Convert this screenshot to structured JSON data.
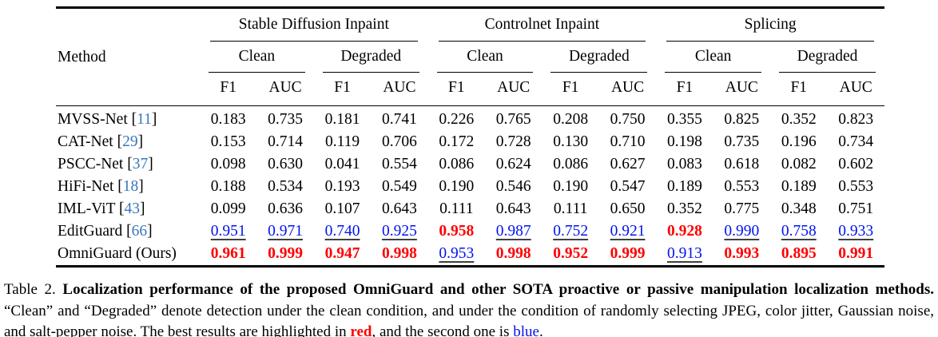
{
  "colors": {
    "best_highlight": "#fe0000",
    "second_highlight": "#0013ee",
    "citation_link": "#3778b9",
    "rule": "#000000"
  },
  "table": {
    "corner_label": "Method",
    "groups": [
      {
        "label": "Stable Diffusion Inpaint"
      },
      {
        "label": "Controlnet Inpaint"
      },
      {
        "label": "Splicing"
      }
    ],
    "conditions": [
      "Clean",
      "Degraded",
      "Clean",
      "Degraded",
      "Clean",
      "Degraded"
    ],
    "metrics": [
      "F1",
      "AUC",
      "F1",
      "AUC",
      "F1",
      "AUC",
      "F1",
      "AUC",
      "F1",
      "AUC",
      "F1",
      "AUC"
    ],
    "rows": [
      {
        "method": {
          "prefix": "MVSS-Net [",
          "cite": "11",
          "suffix": "]"
        },
        "cells": [
          {
            "t": "0.183",
            "s": "normal"
          },
          {
            "t": "0.735",
            "s": "normal"
          },
          {
            "t": "0.181",
            "s": "normal"
          },
          {
            "t": "0.741",
            "s": "normal"
          },
          {
            "t": "0.226",
            "s": "normal"
          },
          {
            "t": "0.765",
            "s": "normal"
          },
          {
            "t": "0.208",
            "s": "normal"
          },
          {
            "t": "0.750",
            "s": "normal"
          },
          {
            "t": "0.355",
            "s": "normal"
          },
          {
            "t": "0.825",
            "s": "normal"
          },
          {
            "t": "0.352",
            "s": "normal"
          },
          {
            "t": "0.823",
            "s": "normal"
          }
        ]
      },
      {
        "method": {
          "prefix": "CAT-Net [",
          "cite": "29",
          "suffix": "]"
        },
        "cells": [
          {
            "t": "0.153",
            "s": "normal"
          },
          {
            "t": "0.714",
            "s": "normal"
          },
          {
            "t": "0.119",
            "s": "normal"
          },
          {
            "t": "0.706",
            "s": "normal"
          },
          {
            "t": "0.172",
            "s": "normal"
          },
          {
            "t": "0.728",
            "s": "normal"
          },
          {
            "t": "0.130",
            "s": "normal"
          },
          {
            "t": "0.710",
            "s": "normal"
          },
          {
            "t": "0.198",
            "s": "normal"
          },
          {
            "t": "0.735",
            "s": "normal"
          },
          {
            "t": "0.196",
            "s": "normal"
          },
          {
            "t": "0.734",
            "s": "normal"
          }
        ]
      },
      {
        "method": {
          "prefix": "PSCC-Net [",
          "cite": "37",
          "suffix": "]"
        },
        "cells": [
          {
            "t": "0.098",
            "s": "normal"
          },
          {
            "t": "0.630",
            "s": "normal"
          },
          {
            "t": "0.041",
            "s": "normal"
          },
          {
            "t": "0.554",
            "s": "normal"
          },
          {
            "t": "0.086",
            "s": "normal"
          },
          {
            "t": "0.624",
            "s": "normal"
          },
          {
            "t": "0.086",
            "s": "normal"
          },
          {
            "t": "0.627",
            "s": "normal"
          },
          {
            "t": "0.083",
            "s": "normal"
          },
          {
            "t": "0.618",
            "s": "normal"
          },
          {
            "t": "0.082",
            "s": "normal"
          },
          {
            "t": "0.602",
            "s": "normal"
          }
        ]
      },
      {
        "method": {
          "prefix": "HiFi-Net [",
          "cite": "18",
          "suffix": "]"
        },
        "cells": [
          {
            "t": "0.188",
            "s": "normal"
          },
          {
            "t": "0.534",
            "s": "normal"
          },
          {
            "t": "0.193",
            "s": "normal"
          },
          {
            "t": "0.549",
            "s": "normal"
          },
          {
            "t": "0.190",
            "s": "normal"
          },
          {
            "t": "0.546",
            "s": "normal"
          },
          {
            "t": "0.190",
            "s": "normal"
          },
          {
            "t": "0.547",
            "s": "normal"
          },
          {
            "t": "0.189",
            "s": "normal"
          },
          {
            "t": "0.553",
            "s": "normal"
          },
          {
            "t": "0.189",
            "s": "normal"
          },
          {
            "t": "0.553",
            "s": "normal"
          }
        ]
      },
      {
        "method": {
          "prefix": "IML-ViT [",
          "cite": "43",
          "suffix": "]"
        },
        "cells": [
          {
            "t": "0.099",
            "s": "normal"
          },
          {
            "t": "0.636",
            "s": "normal"
          },
          {
            "t": "0.107",
            "s": "normal"
          },
          {
            "t": "0.643",
            "s": "normal"
          },
          {
            "t": "0.111",
            "s": "normal"
          },
          {
            "t": "0.643",
            "s": "normal"
          },
          {
            "t": "0.111",
            "s": "normal"
          },
          {
            "t": "0.650",
            "s": "normal"
          },
          {
            "t": "0.352",
            "s": "normal"
          },
          {
            "t": "0.775",
            "s": "normal"
          },
          {
            "t": "0.348",
            "s": "normal"
          },
          {
            "t": "0.751",
            "s": "normal"
          }
        ]
      },
      {
        "method": {
          "prefix": "EditGuard [",
          "cite": "66",
          "suffix": "]"
        },
        "cells": [
          {
            "t": "0.951",
            "s": "second"
          },
          {
            "t": "0.971",
            "s": "second"
          },
          {
            "t": "0.740",
            "s": "second"
          },
          {
            "t": "0.925",
            "s": "second"
          },
          {
            "t": "0.958",
            "s": "best"
          },
          {
            "t": "0.987",
            "s": "second"
          },
          {
            "t": "0.752",
            "s": "second"
          },
          {
            "t": "0.921",
            "s": "second"
          },
          {
            "t": "0.928",
            "s": "best"
          },
          {
            "t": "0.990",
            "s": "second"
          },
          {
            "t": "0.758",
            "s": "second"
          },
          {
            "t": "0.933",
            "s": "second"
          }
        ]
      },
      {
        "method": {
          "prefix": "OmniGuard (Ours)",
          "cite": "",
          "suffix": ""
        },
        "cells": [
          {
            "t": "0.961",
            "s": "best"
          },
          {
            "t": "0.999",
            "s": "best"
          },
          {
            "t": "0.947",
            "s": "best"
          },
          {
            "t": "0.998",
            "s": "best"
          },
          {
            "t": "0.953",
            "s": "second"
          },
          {
            "t": "0.998",
            "s": "best"
          },
          {
            "t": "0.952",
            "s": "best"
          },
          {
            "t": "0.999",
            "s": "best"
          },
          {
            "t": "0.913",
            "s": "second"
          },
          {
            "t": "0.993",
            "s": "best"
          },
          {
            "t": "0.895",
            "s": "best"
          },
          {
            "t": "0.991",
            "s": "best"
          }
        ]
      }
    ]
  },
  "caption": {
    "label": "Table 2. ",
    "bold": "Localization performance of the proposed OmniGuard and other SOTA proactive or passive manipulation localization methods.",
    "body1": " “Clean” and “Degraded” denote detection under the clean condition, and under the condition of randomly selecting JPEG, color jitter, Gaussian noise, and salt-pepper noise. The best results are highlighted in ",
    "red_word": "red",
    "body2": ", and the second one is ",
    "blue_word": "blue",
    "body3": "."
  }
}
